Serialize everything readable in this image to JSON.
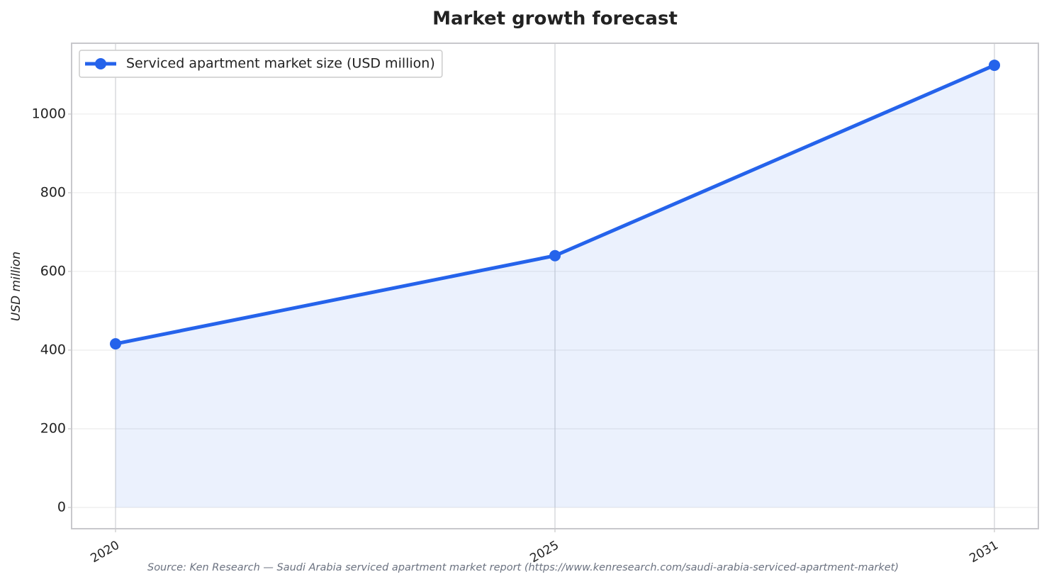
{
  "chart_data": {
    "type": "line",
    "title": "Market growth forecast",
    "ylabel": "USD million",
    "source": "Source: Ken Research — Saudi Arabia serviced apartment market report (https://www.kenresearch.com/saudi-arabia-serviced-apartment-market)",
    "categories": [
      "2020",
      "2025",
      "2031"
    ],
    "series": [
      {
        "name": "Serviced apartment market size (USD million)",
        "color": "#2563eb",
        "values": [
          416,
          640,
          1124
        ]
      }
    ],
    "area": true,
    "ylim": [
      -54,
      1180
    ],
    "yticks": [
      0,
      200,
      400,
      600,
      800,
      1000
    ],
    "grid": true,
    "legend": "upper left"
  }
}
